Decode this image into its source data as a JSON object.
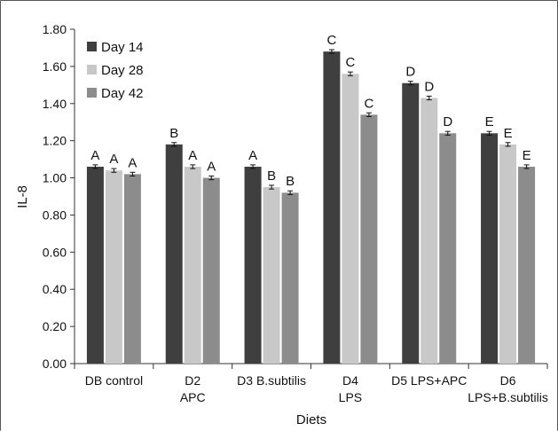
{
  "chart_data": {
    "type": "bar",
    "title": "",
    "xlabel": "Diets",
    "ylabel": "IL-8",
    "ylim": [
      0,
      1.8
    ],
    "yticks": [
      "0.00",
      "0.20",
      "0.40",
      "0.60",
      "0.80",
      "1.00",
      "1.20",
      "1.40",
      "1.60",
      "1.80"
    ],
    "categories": [
      [
        "DB control"
      ],
      [
        "D2",
        "APC"
      ],
      [
        "D3 B.subtilis"
      ],
      [
        "D4",
        "LPS"
      ],
      [
        "D5 LPS+APC"
      ],
      [
        "D6",
        "LPS+B.subtilis"
      ]
    ],
    "series": [
      {
        "name": "Day 14",
        "color": "#3f3f3f",
        "values": [
          1.06,
          1.18,
          1.06,
          1.68,
          1.51,
          1.24
        ],
        "errors": [
          0.01,
          0.01,
          0.01,
          0.01,
          0.01,
          0.01
        ],
        "labels": [
          "A",
          "B",
          "A",
          "C",
          "D",
          "E"
        ]
      },
      {
        "name": "Day 28",
        "color": "#c8c8c8",
        "values": [
          1.04,
          1.06,
          0.95,
          1.56,
          1.43,
          1.18
        ],
        "errors": [
          0.01,
          0.01,
          0.01,
          0.01,
          0.01,
          0.01
        ],
        "labels": [
          "A",
          "A",
          "B",
          "C",
          "D",
          "E"
        ]
      },
      {
        "name": "Day 42",
        "color": "#8c8c8c",
        "values": [
          1.02,
          1.0,
          0.92,
          1.34,
          1.24,
          1.06
        ],
        "errors": [
          0.01,
          0.01,
          0.01,
          0.01,
          0.01,
          0.01
        ],
        "labels": [
          "A",
          "A",
          "B",
          "C",
          "D",
          "E"
        ]
      }
    ],
    "legend_position": "top-left",
    "grid": false
  }
}
